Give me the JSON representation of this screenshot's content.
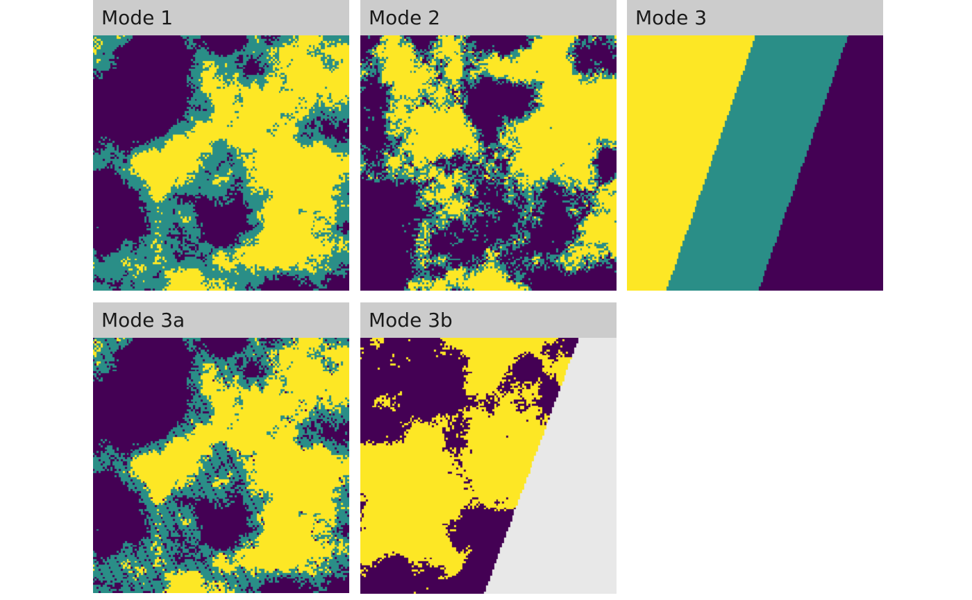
{
  "chart_data": {
    "type": "heatmap",
    "palette": {
      "low": "#440154",
      "mid": "#2a8e87",
      "high": "#fde725",
      "na": "#e8e8e8",
      "strip_bg": "#cccccc"
    },
    "panels": [
      {
        "id": "mode1",
        "title": "Mode 1",
        "classes": 3,
        "description": "spatially autocorrelated random landscape, three classes"
      },
      {
        "id": "mode2",
        "title": "Mode 2",
        "classes": 3,
        "description": "spatially autocorrelated random landscape, three classes"
      },
      {
        "id": "mode3",
        "title": "Mode 3",
        "classes": 3,
        "description": "three diagonal bands: high (left), mid (middle), low (right)"
      },
      {
        "id": "mode3a",
        "title": "Mode 3a",
        "classes": 3,
        "description": "Mode 1 landscape variant"
      },
      {
        "id": "mode3b",
        "title": "Mode 3b",
        "classes": 2,
        "description": "two-class landscape clipped along diagonal; right region missing (NA)"
      }
    ]
  }
}
